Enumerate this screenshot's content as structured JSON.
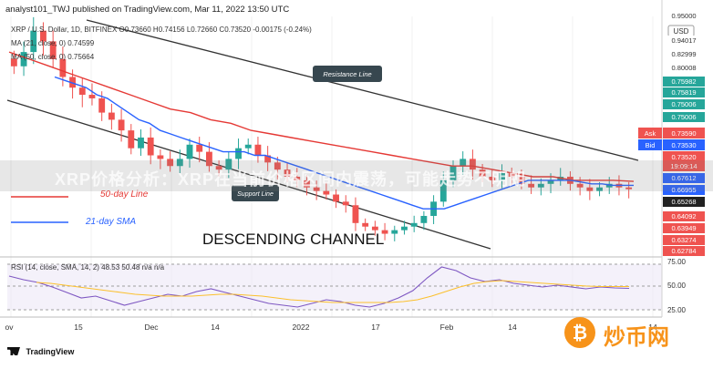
{
  "header": {
    "published": "analyst101_TWJ published on TradingView.com, Mar 11, 2022 13:50 UTC",
    "legend_main": "XRP / U.S. Dollar, 1D, BITFINEX  O0.73660 H0.74156 L0.72660 C0.73520 -0.00175 (-0.24%)",
    "legend_ma21": "MA (21, close, 0)  0.74599",
    "legend_ma50": "MA (50, close, 0)  0.75664",
    "rsi_legend": "RSI (14, close, SMA, 14, 2)  48.53  50.48  n/a  n/a"
  },
  "axis": {
    "currency": "USD",
    "price_ticks": [
      "0.95000",
      "0.94017",
      "0.82999",
      "0.80008",
      "0.75982",
      "0.75819",
      "0.75006",
      "0.75006",
      "0.67612",
      "0.66955",
      "0.65268",
      "0.64092",
      "0.63949",
      "0.63274",
      "0.62784"
    ],
    "ask_label": "Ask",
    "ask_value": "0.73590",
    "bid_label": "Bid",
    "bid_value": "0.73530",
    "last_value": "0.73520",
    "countdown": "19:09:14",
    "rsi_ticks": [
      "75.00",
      "50.00",
      "25.00"
    ],
    "time_ticks": [
      "ov",
      "15",
      "Dec",
      "14",
      "2022",
      "17",
      "Feb",
      "14",
      "14"
    ]
  },
  "annotations": {
    "resistance": "Resistance Line",
    "support": "Support Line",
    "sma50": "50-day Line",
    "sma21": "21-day SMA",
    "channel": "DESCENDING CHANNEL"
  },
  "watermark": "XRP价格分析：XRP在当前价格区间内震荡，可能走势不明朗",
  "footer": {
    "brand": "TradingView"
  },
  "site_logo": "炒币网",
  "colors": {
    "up": "#26a69a",
    "down": "#ef5350",
    "ma21": "#2962ff",
    "ma50": "#e53935",
    "rsi": "#7e57c2",
    "rsi_sma": "#fbc02d",
    "channel": "#333333"
  },
  "chart_data": {
    "type": "candlestick",
    "symbol": "XRP / U.S. Dollar, 1D, BITFINEX",
    "ohlc_last": {
      "open": 0.7366,
      "high": 0.74156,
      "low": 0.7266,
      "close": 0.7352
    },
    "close_series": [
      1.08,
      1.12,
      1.18,
      1.15,
      1.1,
      1.05,
      1.02,
      1.0,
      0.99,
      0.95,
      0.93,
      0.9,
      0.85,
      0.88,
      0.83,
      0.82,
      0.8,
      0.82,
      0.86,
      0.84,
      0.8,
      0.79,
      0.82,
      0.85,
      0.86,
      0.83,
      0.81,
      0.79,
      0.77,
      0.76,
      0.74,
      0.73,
      0.72,
      0.7,
      0.69,
      0.64,
      0.63,
      0.62,
      0.61,
      0.62,
      0.63,
      0.64,
      0.66,
      0.7,
      0.76,
      0.8,
      0.82,
      0.79,
      0.77,
      0.76,
      0.78,
      0.77,
      0.75,
      0.74,
      0.75,
      0.76,
      0.77,
      0.75,
      0.74,
      0.73,
      0.74,
      0.75,
      0.74,
      0.735
    ],
    "ma21": [
      1.05,
      1.04,
      1.03,
      1.02,
      1.0,
      0.99,
      0.97,
      0.95,
      0.93,
      0.92,
      0.9,
      0.89,
      0.88,
      0.87,
      0.86,
      0.85,
      0.84,
      0.84,
      0.84,
      0.83,
      0.83,
      0.82,
      0.81,
      0.8,
      0.79,
      0.78,
      0.77,
      0.76,
      0.75,
      0.74,
      0.73,
      0.72,
      0.71,
      0.7,
      0.69,
      0.68,
      0.68,
      0.68,
      0.69,
      0.7,
      0.71,
      0.72,
      0.73,
      0.74,
      0.75,
      0.76,
      0.76,
      0.76,
      0.76,
      0.76,
      0.755,
      0.75,
      0.75,
      0.746,
      0.746,
      0.746
    ],
    "ma50": [
      1.12,
      1.1,
      1.08,
      1.06,
      1.04,
      1.02,
      1.0,
      0.98,
      0.96,
      0.95,
      0.93,
      0.92,
      0.9,
      0.89,
      0.88,
      0.87,
      0.86,
      0.85,
      0.84,
      0.83,
      0.82,
      0.81,
      0.8,
      0.8,
      0.79,
      0.78,
      0.77,
      0.77,
      0.76,
      0.76,
      0.76,
      0.757
    ],
    "rsi": [
      62,
      58,
      55,
      50,
      44,
      38,
      40,
      35,
      30,
      34,
      38,
      42,
      40,
      45,
      48,
      44,
      40,
      36,
      32,
      30,
      28,
      32,
      36,
      34,
      30,
      28,
      32,
      38,
      46,
      60,
      72,
      68,
      60,
      56,
      58,
      54,
      52,
      50,
      52,
      50,
      48,
      50,
      49,
      48.5
    ],
    "rsi_sma": [
      55,
      54,
      52,
      50,
      48,
      46,
      44,
      42,
      41,
      40,
      40,
      40,
      41,
      42,
      42,
      41,
      40,
      38,
      36,
      35,
      34,
      33,
      33,
      33,
      33,
      33,
      34,
      36,
      40,
      45,
      50,
      54,
      56,
      57,
      56,
      55,
      54,
      53,
      52,
      51,
      50.5,
      50.5,
      50.48
    ]
  }
}
